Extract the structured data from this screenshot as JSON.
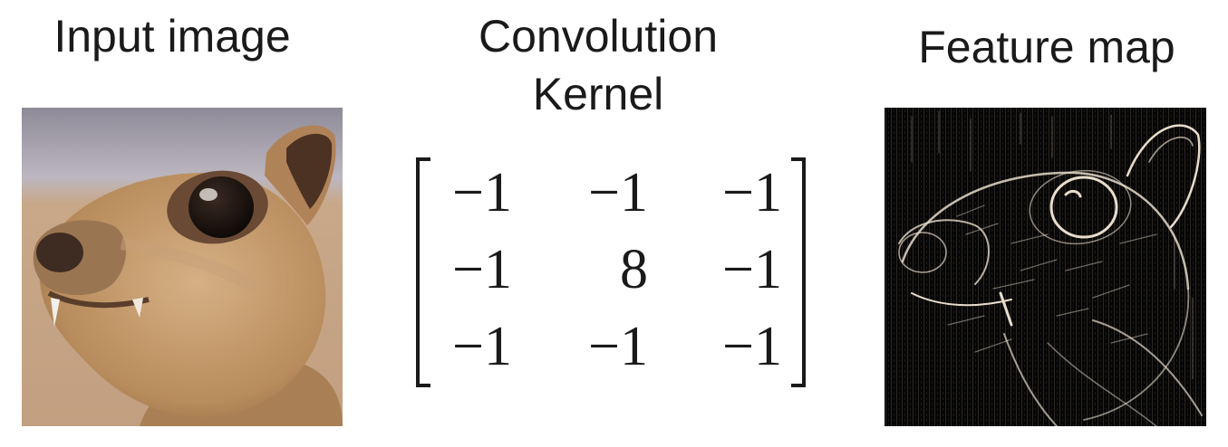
{
  "labels": {
    "input_title": "Input image",
    "kernel_title_line1": "Convolution",
    "kernel_title_line2": "Kernel",
    "feature_title": "Feature map"
  },
  "kernel": {
    "rows": [
      [
        "−1",
        "−1",
        "−1"
      ],
      [
        "−1",
        "8",
        "−1"
      ],
      [
        "−1",
        "−1",
        "−1"
      ]
    ]
  },
  "images": {
    "input_icon": "squirrel-photo-icon",
    "feature_icon": "edge-detected-squirrel-icon"
  },
  "colors": {
    "text": "#1a1a1a",
    "fur": "#c49a6c",
    "background_wall": "#c9a887",
    "feature_background": "#050505",
    "feature_edges": "#e8dccb"
  }
}
